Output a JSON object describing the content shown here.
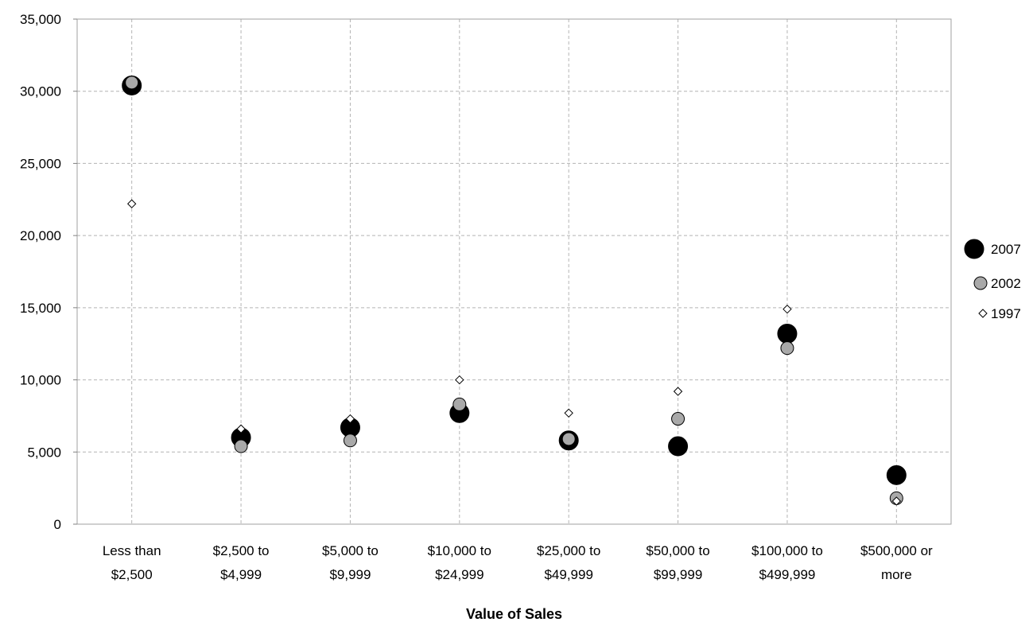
{
  "chart_data": {
    "type": "scatter",
    "title": "",
    "xlabel": "Value of Sales",
    "ylabel": "",
    "ylim": [
      0,
      35000
    ],
    "yticks": [
      "0",
      "5,000",
      "10,000",
      "15,000",
      "20,000",
      "25,000",
      "30,000",
      "35,000"
    ],
    "ytick_values": [
      0,
      5000,
      10000,
      15000,
      20000,
      25000,
      30000,
      35000
    ],
    "grid": true,
    "legend_position": "right",
    "categories": [
      [
        "Less than",
        "$2,500"
      ],
      [
        "$2,500 to",
        "$4,999"
      ],
      [
        "$5,000 to",
        "$9,999"
      ],
      [
        "$10,000 to",
        "$24,999"
      ],
      [
        "$25,000 to",
        "$49,999"
      ],
      [
        "$50,000 to",
        "$99,999"
      ],
      [
        "$100,000 to",
        "$499,999"
      ],
      [
        "$500,000 or",
        "more"
      ]
    ],
    "series": [
      {
        "name": "2007",
        "marker": "large-circle",
        "color": "#000000",
        "values": [
          30400,
          6000,
          6700,
          7700,
          5800,
          5400,
          13200,
          3400
        ]
      },
      {
        "name": "2002",
        "marker": "medium-circle",
        "color": "#a9a9a9",
        "values": [
          30600,
          5400,
          5800,
          8300,
          5900,
          7300,
          12200,
          1800
        ]
      },
      {
        "name": "1997",
        "marker": "small-diamond",
        "color": "#ffffff",
        "values": [
          22200,
          6600,
          7300,
          10000,
          7700,
          9200,
          14900,
          1600
        ]
      }
    ]
  }
}
